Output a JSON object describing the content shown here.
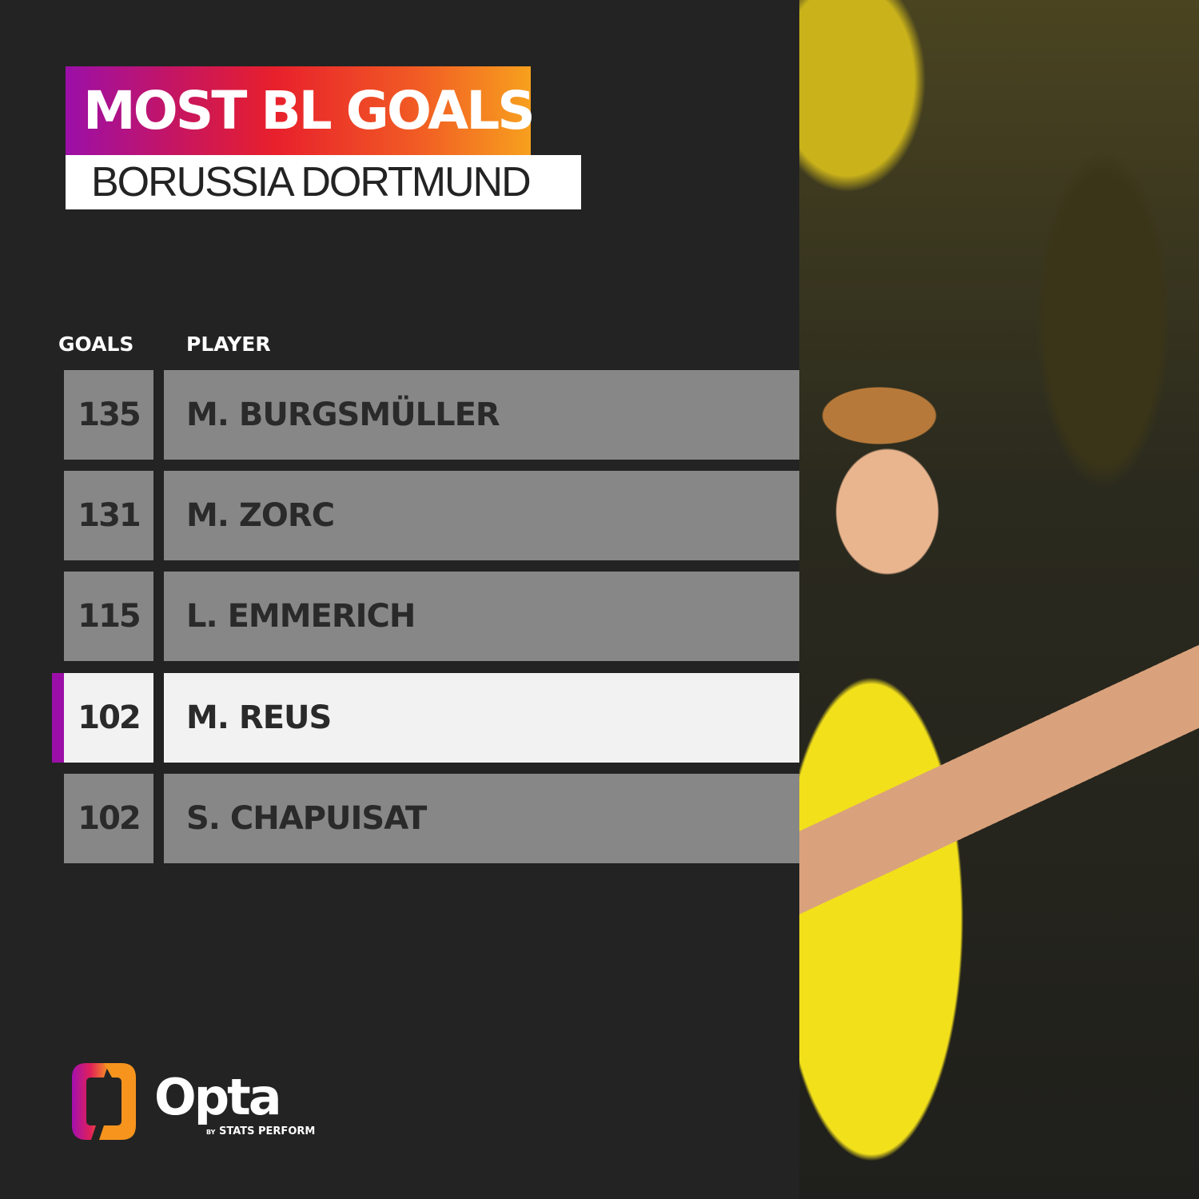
{
  "title": "MOST BL GOALS",
  "subtitle": "BORUSSIA DORTMUND",
  "columns": {
    "goals": "GOALS",
    "player": "PLAYER"
  },
  "rows": [
    {
      "goals": "135",
      "player": "M. BURGSMÜLLER",
      "highlighted": false
    },
    {
      "goals": "131",
      "player": "M. ZORC",
      "highlighted": false
    },
    {
      "goals": "115",
      "player": "L. EMMERICH",
      "highlighted": false
    },
    {
      "goals": "102",
      "player": "M. REUS",
      "highlighted": true
    },
    {
      "goals": "102",
      "player": "S. CHAPUISAT",
      "highlighted": false
    }
  ],
  "brand": {
    "name": "Opta",
    "by": "BY",
    "tagline": "STATS PERFORM"
  },
  "colors": {
    "background": "#232323",
    "row": "#878787",
    "highlight_row": "#f2f2f2",
    "highlight_mark": "#9b0fa8"
  }
}
